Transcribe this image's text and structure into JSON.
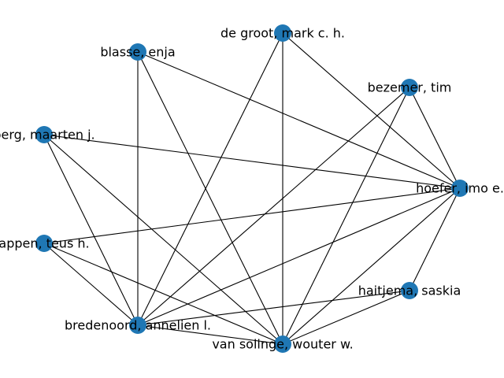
{
  "graph": {
    "node_color": "#1f77b4",
    "edge_color": "#000000",
    "nodes": [
      {
        "id": "blasse",
        "label": "blasse, enja"
      },
      {
        "id": "degroot",
        "label": "de groot, mark c. h."
      },
      {
        "id": "bezemer",
        "label": "bezemer, tim"
      },
      {
        "id": "berg",
        "label": "berg, maarten j."
      },
      {
        "id": "hoefer",
        "label": "hoefer, imo e."
      },
      {
        "id": "kappen",
        "label": "appen, teus h."
      },
      {
        "id": "haitjema",
        "label": "haitjema, saskia"
      },
      {
        "id": "bredenoord",
        "label": "bredenoord, annelien l."
      },
      {
        "id": "vansolinge",
        "label": "van solinge, wouter w."
      }
    ],
    "edges": [
      [
        "blasse",
        "hoefer"
      ],
      [
        "blasse",
        "bredenoord"
      ],
      [
        "blasse",
        "vansolinge"
      ],
      [
        "degroot",
        "hoefer"
      ],
      [
        "degroot",
        "bredenoord"
      ],
      [
        "degroot",
        "vansolinge"
      ],
      [
        "bezemer",
        "hoefer"
      ],
      [
        "bezemer",
        "bredenoord"
      ],
      [
        "bezemer",
        "vansolinge"
      ],
      [
        "berg",
        "hoefer"
      ],
      [
        "berg",
        "bredenoord"
      ],
      [
        "berg",
        "vansolinge"
      ],
      [
        "kappen",
        "hoefer"
      ],
      [
        "kappen",
        "bredenoord"
      ],
      [
        "kappen",
        "vansolinge"
      ],
      [
        "hoefer",
        "haitjema"
      ],
      [
        "hoefer",
        "bredenoord"
      ],
      [
        "hoefer",
        "vansolinge"
      ],
      [
        "haitjema",
        "bredenoord"
      ],
      [
        "haitjema",
        "vansolinge"
      ],
      [
        "bredenoord",
        "vansolinge"
      ]
    ]
  }
}
